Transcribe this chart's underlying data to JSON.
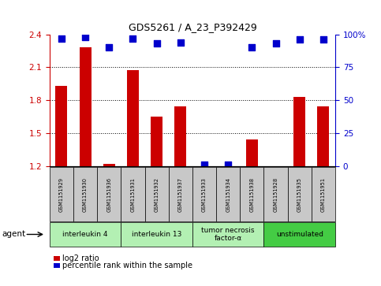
{
  "title": "GDS5261 / A_23_P392429",
  "samples": [
    "GSM1151929",
    "GSM1151930",
    "GSM1151936",
    "GSM1151931",
    "GSM1151932",
    "GSM1151937",
    "GSM1151933",
    "GSM1151934",
    "GSM1151938",
    "GSM1151928",
    "GSM1151935",
    "GSM1151951"
  ],
  "log2_ratio": [
    1.93,
    2.28,
    1.22,
    2.07,
    1.65,
    1.74,
    1.2,
    1.2,
    1.44,
    1.2,
    1.83,
    1.74
  ],
  "percentile": [
    97,
    98,
    90,
    97,
    93,
    94,
    1,
    1,
    90,
    93,
    96,
    96
  ],
  "bar_color": "#cc0000",
  "dot_color": "#0000cc",
  "ylim_left": [
    1.2,
    2.4
  ],
  "ylim_right": [
    0,
    100
  ],
  "yticks_left": [
    1.2,
    1.5,
    1.8,
    2.1,
    2.4
  ],
  "yticks_right": [
    0,
    25,
    50,
    75,
    100
  ],
  "agent_groups": [
    {
      "label": "interleukin 4",
      "start": 0,
      "end": 3,
      "color": "#b3f0b3"
    },
    {
      "label": "interleukin 13",
      "start": 3,
      "end": 6,
      "color": "#b3f0b3"
    },
    {
      "label": "tumor necrosis\nfactor-α",
      "start": 6,
      "end": 9,
      "color": "#b3f0b3"
    },
    {
      "label": "unstimulated",
      "start": 9,
      "end": 12,
      "color": "#44cc44"
    }
  ],
  "legend_bar_label": "log2 ratio",
  "legend_dot_label": "percentile rank within the sample",
  "agent_label": "agent",
  "tick_color_left": "#cc0000",
  "tick_color_right": "#0000cc",
  "bar_width": 0.5,
  "sample_box_color": "#c8c8c8",
  "xlim": [
    -0.5,
    11.5
  ]
}
